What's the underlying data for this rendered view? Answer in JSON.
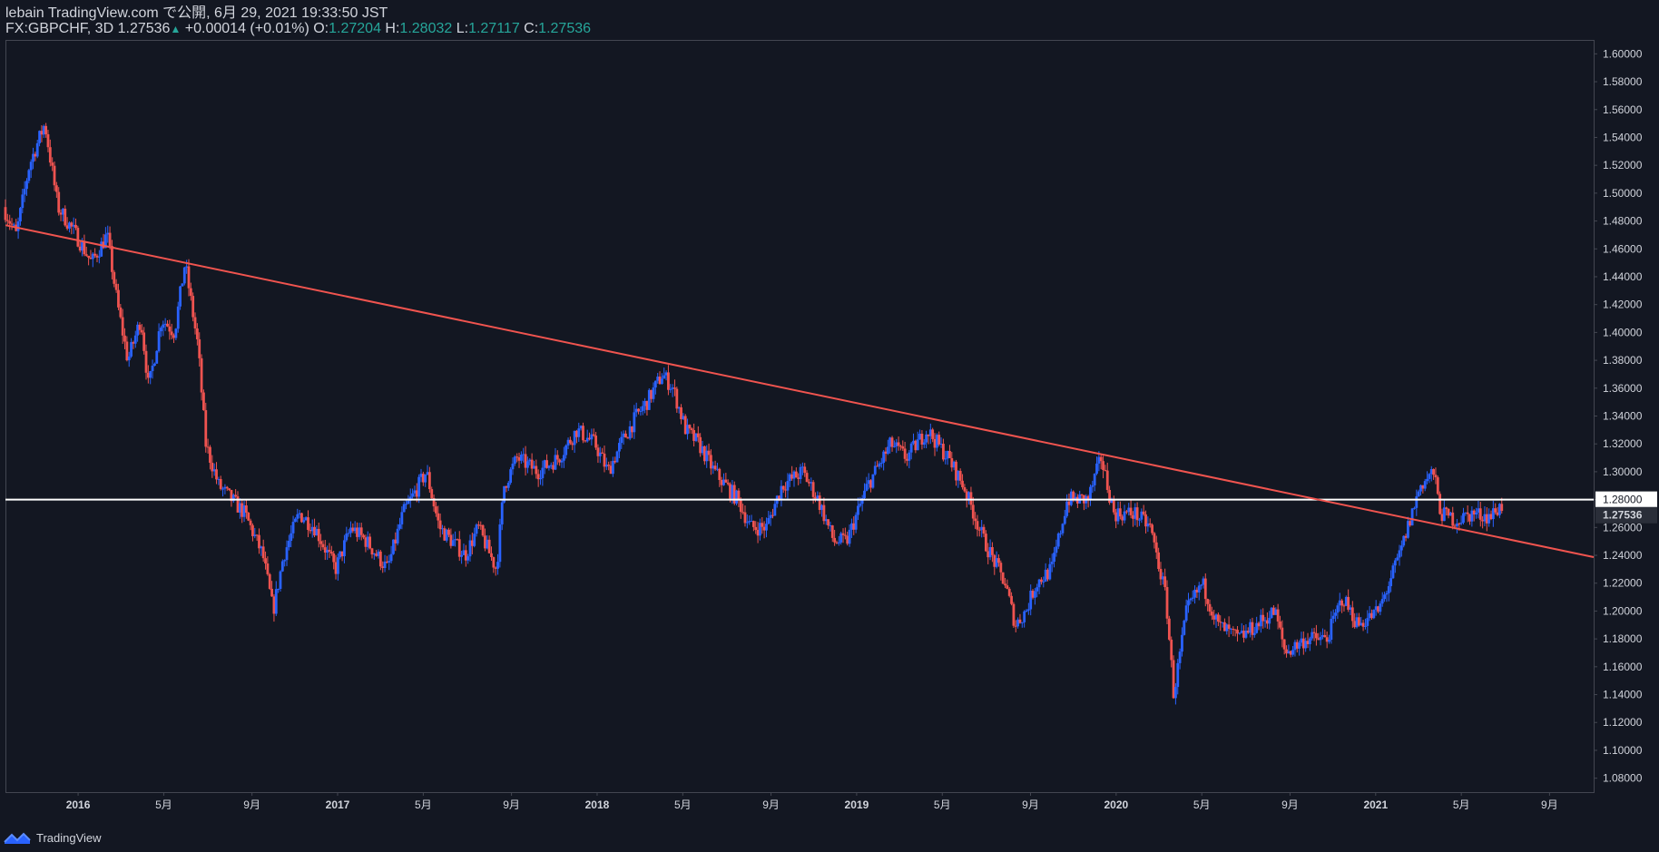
{
  "header": {
    "publish_line": "lebain TradingView.com で公開, 6月 29, 2021 19:33:50 JST",
    "symbol": "FX:GBPCHF, 3D",
    "last": "1.27536",
    "change": "+0.00014 (+0.01%)",
    "o_label": "O:",
    "o_val": "1.27204",
    "h_label": "H:",
    "h_val": "1.28032",
    "l_label": "L:",
    "l_val": "1.27117",
    "c_label": "C:",
    "c_val": "1.27536"
  },
  "footer": {
    "brand": "TradingView",
    "logo_icon": "tradingview-logo-icon"
  },
  "colors": {
    "background": "#131722",
    "bull": "#2962ff",
    "bear": "#ef5350",
    "trendline": "#f0544f",
    "hline": "#ffffff",
    "text": "#d1d4dc",
    "grid_border": "#434651"
  },
  "chart_data": {
    "type": "candlestick",
    "symbol": "GBPCHF",
    "timeframe": "3D",
    "ylim": [
      1.07,
      1.61
    ],
    "y_ticks": [
      "1.60000",
      "1.58000",
      "1.56000",
      "1.54000",
      "1.52000",
      "1.50000",
      "1.48000",
      "1.46000",
      "1.44000",
      "1.42000",
      "1.40000",
      "1.38000",
      "1.36000",
      "1.34000",
      "1.32000",
      "1.30000",
      "1.28000",
      "1.26000",
      "1.24000",
      "1.22000",
      "1.20000",
      "1.18000",
      "1.16000",
      "1.14000",
      "1.12000",
      "1.10000",
      "1.08000"
    ],
    "x_ticks": [
      {
        "t": 2016.0,
        "label": "2016",
        "bold": true
      },
      {
        "t": 2016.33,
        "label": "5月",
        "bold": false
      },
      {
        "t": 2016.67,
        "label": "9月",
        "bold": false
      },
      {
        "t": 2017.0,
        "label": "2017",
        "bold": true
      },
      {
        "t": 2017.33,
        "label": "5月",
        "bold": false
      },
      {
        "t": 2017.67,
        "label": "9月",
        "bold": false
      },
      {
        "t": 2018.0,
        "label": "2018",
        "bold": true
      },
      {
        "t": 2018.33,
        "label": "5月",
        "bold": false
      },
      {
        "t": 2018.67,
        "label": "9月",
        "bold": false
      },
      {
        "t": 2019.0,
        "label": "2019",
        "bold": true
      },
      {
        "t": 2019.33,
        "label": "5月",
        "bold": false
      },
      {
        "t": 2019.67,
        "label": "9月",
        "bold": false
      },
      {
        "t": 2020.0,
        "label": "2020",
        "bold": true
      },
      {
        "t": 2020.33,
        "label": "5月",
        "bold": false
      },
      {
        "t": 2020.67,
        "label": "9月",
        "bold": false
      },
      {
        "t": 2021.0,
        "label": "2021",
        "bold": true
      },
      {
        "t": 2021.33,
        "label": "5月",
        "bold": false
      },
      {
        "t": 2021.67,
        "label": "9月",
        "bold": false
      }
    ],
    "x_range": [
      2015.72,
      2021.84
    ],
    "trendline": {
      "x1": 2015.72,
      "y1": 1.477,
      "x2": 2021.84,
      "y2": 1.2387
    },
    "hline": {
      "value": 1.28,
      "label": "1.28000"
    },
    "last_price": {
      "value": 1.27536,
      "label": "1.27536"
    },
    "waypoints": [
      [
        2015.72,
        1.49
      ],
      [
        2015.77,
        1.47
      ],
      [
        2015.82,
        1.52
      ],
      [
        2015.88,
        1.55
      ],
      [
        2015.93,
        1.49
      ],
      [
        2016.0,
        1.47
      ],
      [
        2016.06,
        1.45
      ],
      [
        2016.12,
        1.47
      ],
      [
        2016.16,
        1.42
      ],
      [
        2016.2,
        1.38
      ],
      [
        2016.25,
        1.41
      ],
      [
        2016.28,
        1.36
      ],
      [
        2016.33,
        1.41
      ],
      [
        2016.38,
        1.4
      ],
      [
        2016.42,
        1.45
      ],
      [
        2016.47,
        1.39
      ],
      [
        2016.5,
        1.32
      ],
      [
        2016.55,
        1.29
      ],
      [
        2016.6,
        1.28
      ],
      [
        2016.65,
        1.27
      ],
      [
        2016.72,
        1.24
      ],
      [
        2016.76,
        1.2
      ],
      [
        2016.8,
        1.24
      ],
      [
        2016.86,
        1.27
      ],
      [
        2016.92,
        1.26
      ],
      [
        2017.0,
        1.23
      ],
      [
        2017.06,
        1.26
      ],
      [
        2017.12,
        1.25
      ],
      [
        2017.2,
        1.23
      ],
      [
        2017.26,
        1.27
      ],
      [
        2017.35,
        1.3
      ],
      [
        2017.4,
        1.26
      ],
      [
        2017.5,
        1.24
      ],
      [
        2017.55,
        1.26
      ],
      [
        2017.62,
        1.23
      ],
      [
        2017.65,
        1.29
      ],
      [
        2017.7,
        1.31
      ],
      [
        2017.78,
        1.3
      ],
      [
        2017.86,
        1.31
      ],
      [
        2017.93,
        1.33
      ],
      [
        2018.0,
        1.32
      ],
      [
        2018.05,
        1.3
      ],
      [
        2018.1,
        1.32
      ],
      [
        2018.16,
        1.34
      ],
      [
        2018.2,
        1.35
      ],
      [
        2018.26,
        1.37
      ],
      [
        2018.3,
        1.36
      ],
      [
        2018.35,
        1.33
      ],
      [
        2018.4,
        1.32
      ],
      [
        2018.46,
        1.3
      ],
      [
        2018.55,
        1.28
      ],
      [
        2018.6,
        1.26
      ],
      [
        2018.66,
        1.26
      ],
      [
        2018.72,
        1.29
      ],
      [
        2018.8,
        1.3
      ],
      [
        2018.86,
        1.28
      ],
      [
        2018.92,
        1.25
      ],
      [
        2018.97,
        1.25
      ],
      [
        2019.05,
        1.29
      ],
      [
        2019.14,
        1.32
      ],
      [
        2019.2,
        1.31
      ],
      [
        2019.28,
        1.33
      ],
      [
        2019.36,
        1.31
      ],
      [
        2019.42,
        1.29
      ],
      [
        2019.5,
        1.25
      ],
      [
        2019.58,
        1.22
      ],
      [
        2019.62,
        1.19
      ],
      [
        2019.66,
        1.2
      ],
      [
        2019.7,
        1.22
      ],
      [
        2019.76,
        1.23
      ],
      [
        2019.82,
        1.28
      ],
      [
        2019.9,
        1.28
      ],
      [
        2019.95,
        1.31
      ],
      [
        2020.0,
        1.27
      ],
      [
        2020.08,
        1.27
      ],
      [
        2020.14,
        1.26
      ],
      [
        2020.2,
        1.21
      ],
      [
        2020.23,
        1.14
      ],
      [
        2020.28,
        1.2
      ],
      [
        2020.34,
        1.22
      ],
      [
        2020.4,
        1.19
      ],
      [
        2020.48,
        1.18
      ],
      [
        2020.55,
        1.19
      ],
      [
        2020.62,
        1.2
      ],
      [
        2020.66,
        1.17
      ],
      [
        2020.74,
        1.18
      ],
      [
        2020.82,
        1.18
      ],
      [
        2020.88,
        1.21
      ],
      [
        2020.94,
        1.19
      ],
      [
        2021.02,
        1.2
      ],
      [
        2021.1,
        1.24
      ],
      [
        2021.18,
        1.29
      ],
      [
        2021.23,
        1.3
      ],
      [
        2021.26,
        1.27
      ],
      [
        2021.32,
        1.265
      ],
      [
        2021.38,
        1.27
      ],
      [
        2021.45,
        1.268
      ],
      [
        2021.49,
        1.27536
      ]
    ]
  }
}
